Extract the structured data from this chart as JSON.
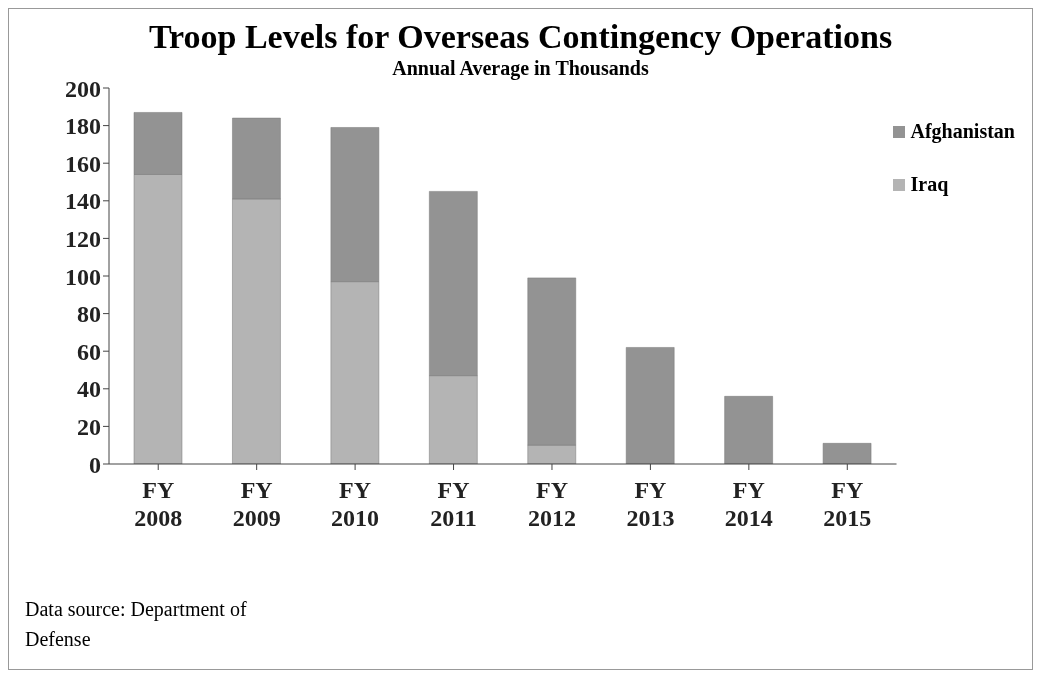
{
  "chart_data": {
    "type": "bar",
    "title": "Troop Levels for Overseas Contingency Operations",
    "subtitle": "Annual Average in Thousands",
    "categories": [
      "FY 2008",
      "FY 2009",
      "FY 2010",
      "FY 2011",
      "FY 2012",
      "FY 2013",
      "FY 2014",
      "FY 2015"
    ],
    "series": [
      {
        "name": "Iraq",
        "color": "#b4b4b4",
        "values": [
          154,
          141,
          97,
          47,
          10,
          0,
          0,
          0
        ]
      },
      {
        "name": "Afghanistan",
        "color": "#939393",
        "values": [
          33,
          43,
          82,
          98,
          89,
          62,
          36,
          11
        ]
      }
    ],
    "stacked": true,
    "ylim": [
      0,
      200
    ],
    "yticks": [
      0,
      20,
      40,
      60,
      80,
      100,
      120,
      140,
      160,
      180,
      200
    ],
    "grid": false,
    "legend": "right",
    "annotations": [
      "Data source: Department of Defense"
    ]
  }
}
